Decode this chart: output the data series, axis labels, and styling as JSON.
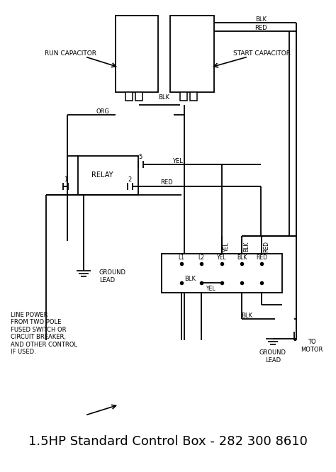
{
  "title": "1.5HP Standard Control Box - 282 300 8610",
  "bg_color": "#ffffff",
  "line_color": "#000000",
  "title_fontsize": 13,
  "run_cap_label": "RUN CAPACITOR",
  "start_cap_label": "START CAPACITOR",
  "relay_label": "RELAY",
  "ground_lead_label1": "GROUND\nLEAD",
  "ground_lead_label2": "GROUND\nLEAD",
  "to_motor_label": "TO\nMOTOR",
  "line_power_label": "LINE POWER\nFROM TWO POLE\nFUSED SWITCH OR\nCIRCUIT BREAKER,\nAND OTHER CONTROL\nIF USED."
}
